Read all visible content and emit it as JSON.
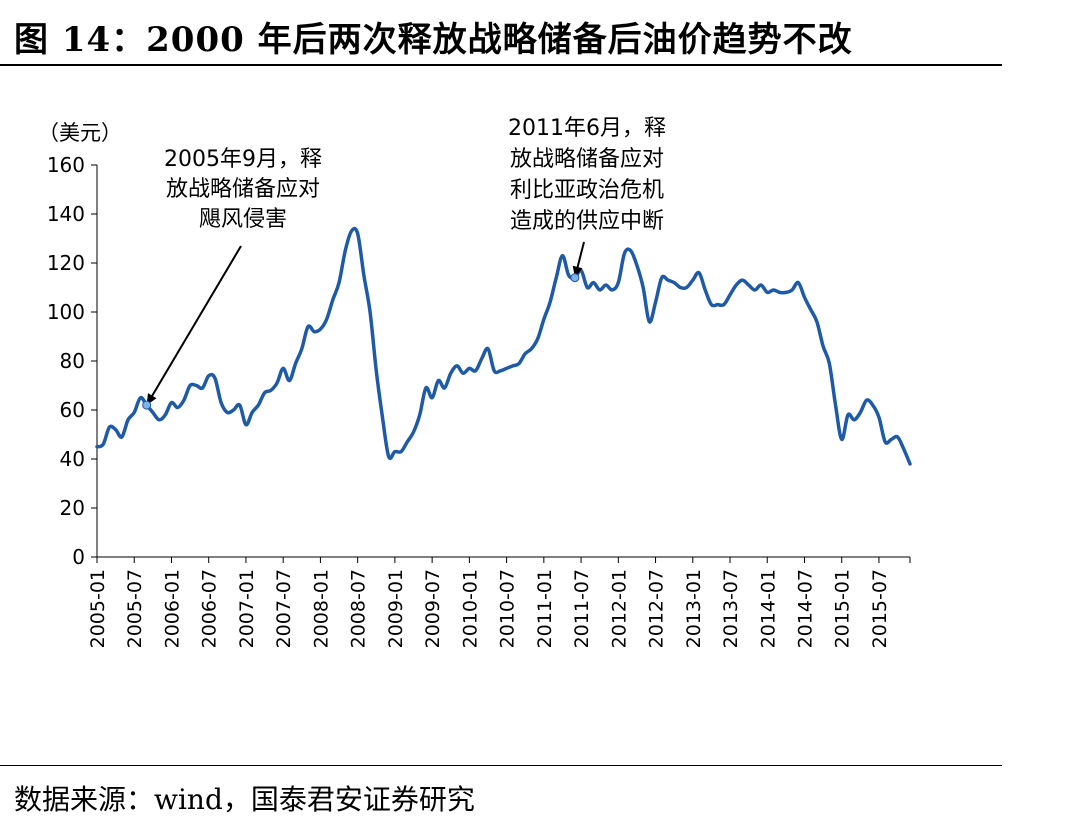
{
  "figure": {
    "title": "图 14：2000 年后两次释放战略储备后油价趋势不改",
    "source": "数据来源：wind，国泰君安证券研究"
  },
  "chart_data": {
    "type": "line",
    "ylabel": "（美元）",
    "ylim": [
      0,
      160
    ],
    "yticks": [
      0,
      20,
      40,
      60,
      80,
      100,
      120,
      140,
      160
    ],
    "xlabel": "",
    "xticks": [
      "2005-01",
      "2005-07",
      "2006-01",
      "2006-07",
      "2007-01",
      "2007-07",
      "2008-01",
      "2008-07",
      "2009-01",
      "2009-07",
      "2010-01",
      "2010-07",
      "2011-01",
      "2011-07",
      "2012-01",
      "2012-07",
      "2013-01",
      "2013-07",
      "2014-01",
      "2014-07",
      "2015-01",
      "2015-07"
    ],
    "grid": false,
    "series_color": "#1f5aa6",
    "series": [
      {
        "x": [
          "2005-01",
          "2005-02",
          "2005-03",
          "2005-04",
          "2005-05",
          "2005-06",
          "2005-07",
          "2005-08",
          "2005-09",
          "2005-10",
          "2005-11",
          "2005-12",
          "2006-01",
          "2006-02",
          "2006-03",
          "2006-04",
          "2006-05",
          "2006-06",
          "2006-07",
          "2006-08",
          "2006-09",
          "2006-10",
          "2006-11",
          "2006-12",
          "2007-01",
          "2007-02",
          "2007-03",
          "2007-04",
          "2007-05",
          "2007-06",
          "2007-07",
          "2007-08",
          "2007-09",
          "2007-10",
          "2007-11",
          "2007-12",
          "2008-01",
          "2008-02",
          "2008-03",
          "2008-04",
          "2008-05",
          "2008-06",
          "2008-07",
          "2008-08",
          "2008-09",
          "2008-10",
          "2008-11",
          "2008-12",
          "2009-01",
          "2009-02",
          "2009-03",
          "2009-04",
          "2009-05",
          "2009-06",
          "2009-07",
          "2009-08",
          "2009-09",
          "2009-10",
          "2009-11",
          "2009-12",
          "2010-01",
          "2010-02",
          "2010-03",
          "2010-04",
          "2010-05",
          "2010-06",
          "2010-07",
          "2010-08",
          "2010-09",
          "2010-10",
          "2010-11",
          "2010-12",
          "2011-01",
          "2011-02",
          "2011-03",
          "2011-04",
          "2011-05",
          "2011-06",
          "2011-07",
          "2011-08",
          "2011-09",
          "2011-10",
          "2011-11",
          "2011-12",
          "2012-01",
          "2012-02",
          "2012-03",
          "2012-04",
          "2012-05",
          "2012-06",
          "2012-07",
          "2012-08",
          "2012-09",
          "2012-10",
          "2012-11",
          "2012-12",
          "2013-01",
          "2013-02",
          "2013-03",
          "2013-04",
          "2013-05",
          "2013-06",
          "2013-07",
          "2013-08",
          "2013-09",
          "2013-10",
          "2013-11",
          "2013-12",
          "2014-01",
          "2014-02",
          "2014-03",
          "2014-04",
          "2014-05",
          "2014-06",
          "2014-07",
          "2014-08",
          "2014-09",
          "2014-10",
          "2014-11",
          "2014-12",
          "2015-01",
          "2015-02",
          "2015-03",
          "2015-04",
          "2015-05",
          "2015-06",
          "2015-07",
          "2015-08",
          "2015-09",
          "2015-10",
          "2015-11",
          "2015-12"
        ],
        "values": [
          45,
          46,
          53,
          52,
          49,
          56,
          59,
          65,
          62,
          59,
          56,
          58,
          63,
          61,
          64,
          70,
          70,
          69,
          74,
          73,
          63,
          59,
          60,
          62,
          54,
          59,
          62,
          67,
          68,
          71,
          77,
          72,
          79,
          85,
          94,
          92,
          93,
          97,
          105,
          112,
          125,
          133,
          132,
          115,
          100,
          76,
          57,
          41,
          43,
          43,
          47,
          51,
          58,
          69,
          65,
          72,
          69,
          75,
          78,
          75,
          77,
          76,
          81,
          85,
          76,
          76,
          77,
          78,
          79,
          83,
          85,
          89,
          97,
          104,
          114,
          123,
          115,
          114,
          117,
          110,
          112,
          109,
          111,
          109,
          112,
          124,
          125,
          119,
          110,
          96,
          104,
          114,
          113,
          112,
          110,
          110,
          113,
          116,
          109,
          103,
          103,
          103,
          107,
          111,
          113,
          111,
          109,
          111,
          108,
          109,
          108,
          108,
          109,
          112,
          106,
          101,
          96,
          86,
          79,
          62,
          48,
          58,
          56,
          59,
          64,
          62,
          57,
          47,
          48,
          49,
          44,
          38
        ]
      }
    ],
    "annotations": [
      {
        "text": [
          "2005年9月，释",
          "放战略储备应对",
          "飓风侵害"
        ],
        "at": "2005-09"
      },
      {
        "text": [
          "2011年6月，释",
          "放战略储备应对",
          "利比亚政治危机",
          "造成的供应中断"
        ],
        "at": "2011-06"
      }
    ]
  }
}
